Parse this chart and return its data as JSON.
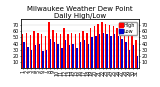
{
  "title": "Milwaukee Weather Dew Point\nDaily High/Low",
  "days": [
    1,
    2,
    3,
    4,
    5,
    6,
    7,
    8,
    9,
    10,
    11,
    12,
    13,
    14,
    15,
    16,
    17,
    18,
    19,
    20,
    21,
    22,
    23,
    24,
    25,
    26,
    27,
    28,
    29,
    30,
    31
  ],
  "high": [
    55,
    57,
    54,
    60,
    58,
    55,
    52,
    75,
    62,
    58,
    55,
    65,
    55,
    58,
    55,
    58,
    60,
    58,
    65,
    68,
    72,
    75,
    72,
    70,
    68,
    65,
    60,
    58,
    52,
    55,
    45
  ],
  "low": [
    42,
    35,
    30,
    38,
    40,
    28,
    30,
    48,
    42,
    40,
    32,
    45,
    38,
    40,
    32,
    42,
    45,
    40,
    50,
    52,
    55,
    58,
    55,
    52,
    55,
    52,
    48,
    42,
    30,
    38,
    20
  ],
  "high_color": "#ff0000",
  "low_color": "#0000cc",
  "ylim": [
    0,
    80
  ],
  "yticks": [
    10,
    20,
    30,
    40,
    50,
    60,
    70
  ],
  "background_color": "#ffffff",
  "title_fontsize": 5,
  "tick_fontsize": 3.5,
  "legend_fontsize": 3.5,
  "bar_width": 0.38
}
